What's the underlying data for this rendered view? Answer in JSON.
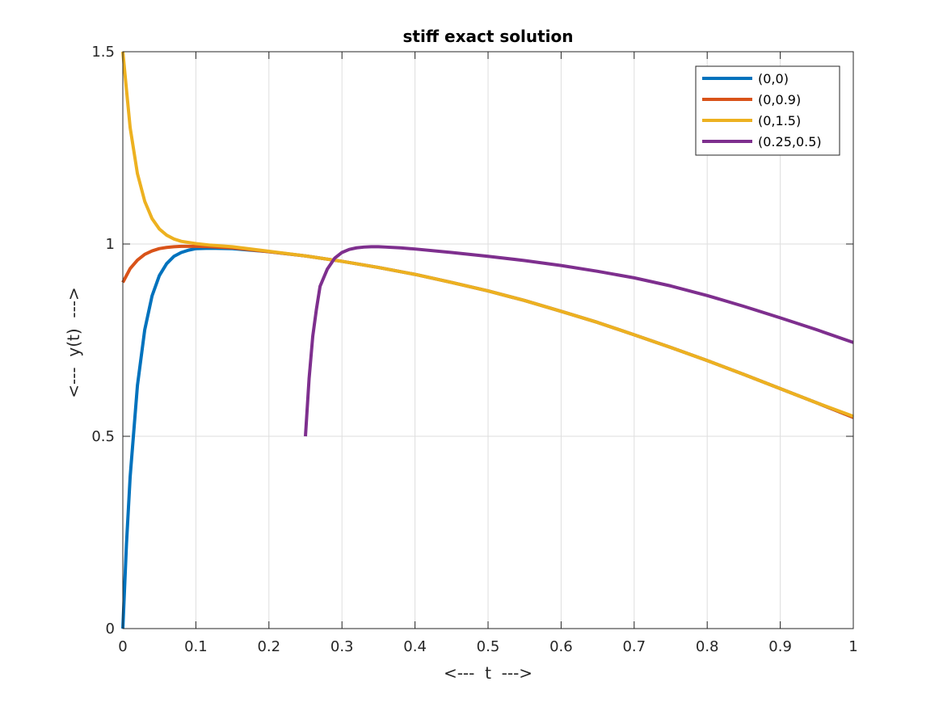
{
  "chart_data": {
    "type": "line",
    "title": "stiff exact solution",
    "xlabel": "<---  t  --->",
    "ylabel": "<---  y(t)  --->",
    "xlim": [
      0,
      1
    ],
    "ylim": [
      0,
      1.5
    ],
    "xticks": [
      0,
      0.1,
      0.2,
      0.3,
      0.4,
      0.5,
      0.6,
      0.7,
      0.8,
      0.9,
      1
    ],
    "xtick_labels": [
      "0",
      "0.1",
      "0.2",
      "0.3",
      "0.4",
      "0.5",
      "0.6",
      "0.7",
      "0.8",
      "0.9",
      "1"
    ],
    "yticks": [
      0,
      0.5,
      1,
      1.5
    ],
    "ytick_labels": [
      "0",
      "0.5",
      "1",
      "1.5"
    ],
    "grid": true,
    "legend_position": "top-right",
    "series": [
      {
        "name": "(0,0)",
        "color": "#0072BD",
        "x": [
          0,
          0.005,
          0.01,
          0.02,
          0.03,
          0.04,
          0.05,
          0.06,
          0.07,
          0.08,
          0.09,
          0.1,
          0.12,
          0.15,
          0.2,
          0.25,
          0.3,
          0.35,
          0.4,
          0.45,
          0.5,
          0.55,
          0.6,
          0.65,
          0.7,
          0.75,
          0.8,
          0.85,
          0.9,
          0.95,
          1.0
        ],
        "y": [
          0,
          0.22,
          0.394,
          0.632,
          0.777,
          0.865,
          0.918,
          0.949,
          0.968,
          0.978,
          0.984,
          0.988,
          0.989,
          0.988,
          0.98,
          0.969,
          0.955,
          0.939,
          0.921,
          0.9,
          0.878,
          0.853,
          0.825,
          0.796,
          0.764,
          0.731,
          0.697,
          0.661,
          0.624,
          0.587,
          0.549
        ]
      },
      {
        "name": "(0,0.9)",
        "color": "#D95319",
        "x": [
          0,
          0.01,
          0.02,
          0.03,
          0.04,
          0.05,
          0.06,
          0.07,
          0.08,
          0.1,
          0.12,
          0.15,
          0.2,
          0.25,
          0.3,
          0.35,
          0.4,
          0.45,
          0.5,
          0.55,
          0.6,
          0.65,
          0.7,
          0.75,
          0.8,
          0.85,
          0.9,
          0.95,
          1.0
        ],
        "y": [
          0.9,
          0.936,
          0.958,
          0.973,
          0.982,
          0.988,
          0.991,
          0.993,
          0.994,
          0.994,
          0.993,
          0.99,
          0.98,
          0.969,
          0.955,
          0.939,
          0.921,
          0.9,
          0.878,
          0.853,
          0.825,
          0.796,
          0.764,
          0.731,
          0.697,
          0.661,
          0.624,
          0.587,
          0.549
        ]
      },
      {
        "name": "(0,1.5)",
        "color": "#EDB120",
        "x": [
          0,
          0.01,
          0.02,
          0.03,
          0.04,
          0.05,
          0.06,
          0.07,
          0.08,
          0.1,
          0.12,
          0.15,
          0.2,
          0.25,
          0.3,
          0.35,
          0.4,
          0.45,
          0.5,
          0.55,
          0.6,
          0.65,
          0.7,
          0.75,
          0.8,
          0.85,
          0.9,
          0.95,
          1.0
        ],
        "y": [
          1.5,
          1.303,
          1.183,
          1.111,
          1.066,
          1.039,
          1.023,
          1.013,
          1.007,
          1.001,
          0.997,
          0.993,
          0.981,
          0.969,
          0.955,
          0.939,
          0.921,
          0.9,
          0.878,
          0.853,
          0.825,
          0.796,
          0.764,
          0.731,
          0.697,
          0.661,
          0.624,
          0.587,
          0.552
        ]
      },
      {
        "name": "(0.25,0.5)",
        "color": "#7E2F8E",
        "x": [
          0.25,
          0.255,
          0.26,
          0.265,
          0.27,
          0.28,
          0.29,
          0.3,
          0.31,
          0.32,
          0.33,
          0.34,
          0.35,
          0.36,
          0.38,
          0.4,
          0.45,
          0.5,
          0.55,
          0.6,
          0.65,
          0.7,
          0.75,
          0.8,
          0.85,
          0.9,
          0.95,
          1.0
        ],
        "y": [
          0.5,
          0.65,
          0.76,
          0.83,
          0.89,
          0.935,
          0.963,
          0.978,
          0.986,
          0.99,
          0.992,
          0.993,
          0.993,
          0.992,
          0.99,
          0.987,
          0.978,
          0.968,
          0.957,
          0.944,
          0.929,
          0.912,
          0.891,
          0.866,
          0.838,
          0.808,
          0.777,
          0.744
        ]
      }
    ]
  }
}
